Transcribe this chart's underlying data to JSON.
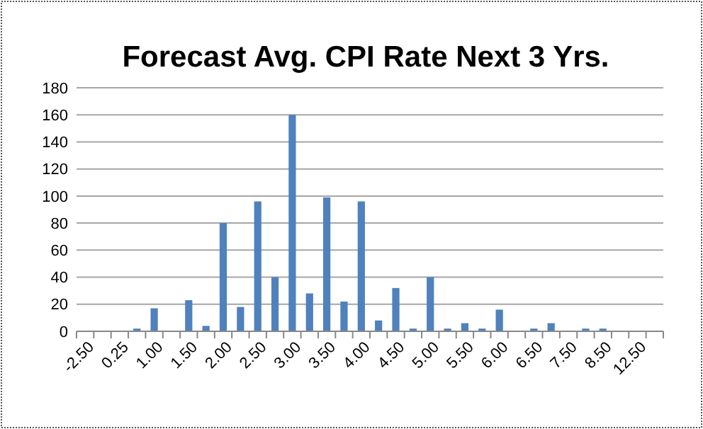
{
  "chart_data": {
    "type": "bar",
    "title": "Forecast Avg. CPI Rate Next 3 Yrs.",
    "categories": [
      "-2.50",
      null,
      "0.25",
      null,
      "1.00",
      null,
      "1.50",
      null,
      "2.00",
      null,
      "2.50",
      null,
      "3.00",
      null,
      "3.50",
      null,
      "4.00",
      null,
      "4.50",
      null,
      "5.00",
      null,
      "5.50",
      null,
      "6.00",
      null,
      "6.50",
      null,
      "7.50",
      null,
      "8.50",
      null,
      "12.50",
      null
    ],
    "values": [
      0,
      0,
      0,
      2,
      17,
      0,
      23,
      4,
      80,
      18,
      96,
      40,
      160,
      28,
      99,
      22,
      96,
      8,
      32,
      2,
      40,
      2,
      6,
      2,
      16,
      0,
      2,
      6,
      0,
      2,
      2,
      0,
      0,
      0
    ],
    "color": "#4f81bd",
    "ylim": [
      0,
      180
    ],
    "yticks": [
      0,
      20,
      40,
      60,
      80,
      100,
      120,
      140,
      160,
      180
    ],
    "grid": "y"
  }
}
